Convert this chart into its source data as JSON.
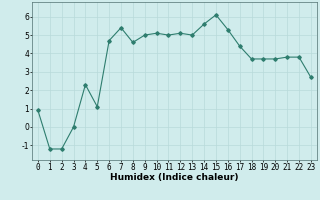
{
  "x": [
    0,
    1,
    2,
    3,
    4,
    5,
    6,
    7,
    8,
    9,
    10,
    11,
    12,
    13,
    14,
    15,
    16,
    17,
    18,
    19,
    20,
    21,
    22,
    23
  ],
  "y": [
    0.9,
    -1.2,
    -1.2,
    0.0,
    2.3,
    1.1,
    4.7,
    5.4,
    4.6,
    5.0,
    5.1,
    5.0,
    5.1,
    5.0,
    5.6,
    6.1,
    5.3,
    4.4,
    3.7,
    3.7,
    3.7,
    3.8,
    3.8,
    2.7
  ],
  "line_color": "#2e7d6e",
  "marker": "D",
  "marker_size": 1.8,
  "linewidth": 0.8,
  "xlabel": "Humidex (Indice chaleur)",
  "xlabel_fontsize": 6.5,
  "xlabel_fontweight": "bold",
  "ylim": [
    -1.8,
    6.8
  ],
  "xlim": [
    -0.5,
    23.5
  ],
  "yticks": [
    -1,
    0,
    1,
    2,
    3,
    4,
    5,
    6
  ],
  "xticks": [
    0,
    1,
    2,
    3,
    4,
    5,
    6,
    7,
    8,
    9,
    10,
    11,
    12,
    13,
    14,
    15,
    16,
    17,
    18,
    19,
    20,
    21,
    22,
    23
  ],
  "grid_color": "#b8dada",
  "bg_color": "#d0ecec",
  "tick_fontsize": 5.5
}
